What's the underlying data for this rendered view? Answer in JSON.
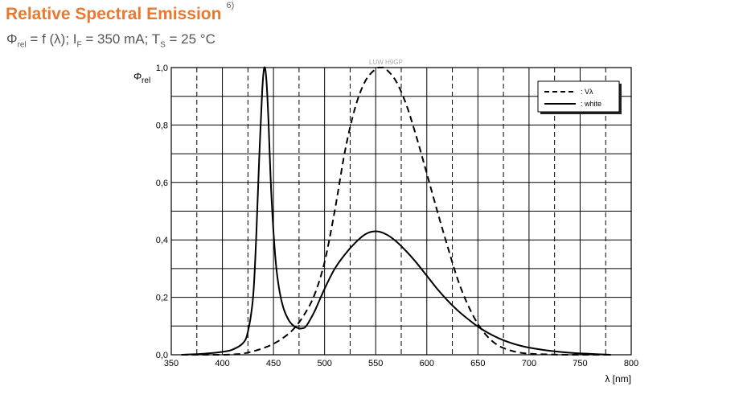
{
  "header": {
    "title": "Relative Spectral Emission",
    "footnote": "6)",
    "subtitle": {
      "phi": "Φ",
      "phi_sub": "rel",
      "mid": " = f (λ); I",
      "if_sub": "F",
      "mid2": " = 350 mA; T",
      "ts_sub": "S",
      "end": " = 25 °C"
    }
  },
  "chart_data": {
    "type": "line",
    "title": "Relative Spectral Emission",
    "watermark": "LUW H9GP",
    "xlabel": "λ [nm]",
    "ylabel": "Φ",
    "ylabel_sub": "rel",
    "xlim": [
      350,
      800
    ],
    "ylim": [
      0,
      1.0
    ],
    "x_ticks": [
      "350",
      "400",
      "450",
      "500",
      "550",
      "600",
      "650",
      "700",
      "750",
      "800"
    ],
    "y_ticks": [
      "0,0",
      "0,2",
      "0,4",
      "0,6",
      "0,8",
      "1,0"
    ],
    "grid": true,
    "legend_position": "top-right",
    "series": [
      {
        "name": ": Vλ",
        "style": "dashed",
        "x": [
          360,
          380,
          400,
          410,
          420,
          430,
          440,
          450,
          460,
          470,
          480,
          490,
          500,
          510,
          520,
          530,
          540,
          550,
          555,
          560,
          570,
          580,
          590,
          600,
          610,
          620,
          630,
          640,
          650,
          660,
          670,
          680,
          690,
          700,
          720,
          740,
          760,
          780
        ],
        "y": [
          0.0,
          0.0,
          0.0,
          0.001,
          0.004,
          0.012,
          0.023,
          0.038,
          0.06,
          0.091,
          0.139,
          0.208,
          0.323,
          0.503,
          0.71,
          0.862,
          0.954,
          0.995,
          1.0,
          0.995,
          0.952,
          0.87,
          0.757,
          0.631,
          0.503,
          0.381,
          0.265,
          0.175,
          0.107,
          0.061,
          0.032,
          0.017,
          0.008,
          0.004,
          0.001,
          0.0,
          0.0,
          0.0
        ]
      },
      {
        "name": ": white",
        "style": "solid",
        "x": [
          360,
          380,
          400,
          410,
          420,
          425,
          430,
          433,
          436,
          439,
          441,
          443,
          445,
          448,
          452,
          456,
          460,
          465,
          470,
          475,
          478,
          482,
          490,
          500,
          510,
          520,
          530,
          540,
          550,
          560,
          570,
          580,
          590,
          600,
          610,
          620,
          630,
          640,
          650,
          660,
          670,
          680,
          690,
          700,
          720,
          740,
          760,
          780
        ],
        "y": [
          0.0,
          0.003,
          0.01,
          0.018,
          0.04,
          0.08,
          0.2,
          0.4,
          0.68,
          0.92,
          1.0,
          0.96,
          0.82,
          0.55,
          0.33,
          0.22,
          0.16,
          0.12,
          0.1,
          0.092,
          0.092,
          0.1,
          0.15,
          0.23,
          0.3,
          0.35,
          0.39,
          0.42,
          0.43,
          0.42,
          0.395,
          0.36,
          0.32,
          0.275,
          0.23,
          0.19,
          0.155,
          0.125,
          0.098,
          0.076,
          0.058,
          0.044,
          0.033,
          0.025,
          0.014,
          0.007,
          0.003,
          0.0
        ]
      }
    ]
  }
}
